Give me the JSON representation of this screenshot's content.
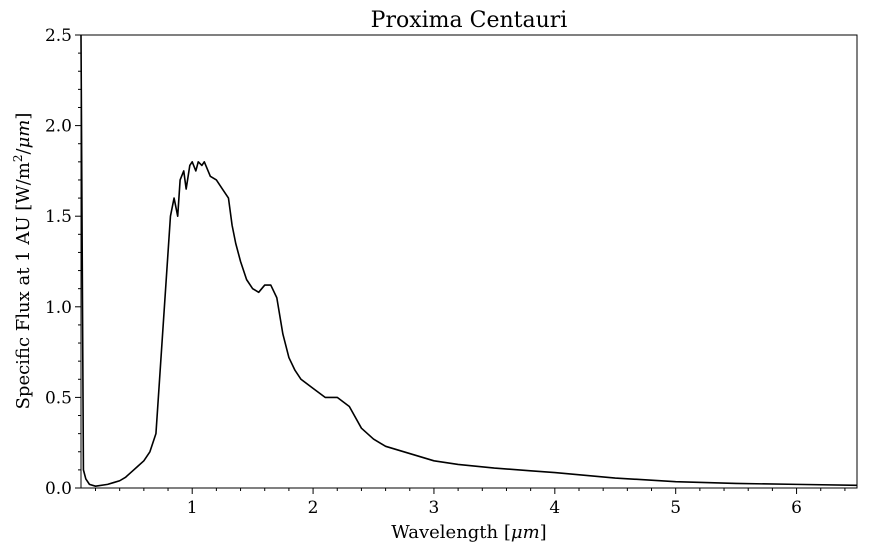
{
  "chart_data": {
    "type": "line",
    "title": "Proxima Centauri",
    "xlabel_text": "Wavelength [",
    "xlabel_unit": "μm",
    "xlabel_close": "]",
    "ylabel_text": "Specific Flux at 1 AU [W/m",
    "ylabel_sup": "2",
    "ylabel_mid": "/",
    "ylabel_unit": "μm",
    "ylabel_close": "]",
    "xlim": [
      0.08,
      6.5
    ],
    "ylim": [
      0.0,
      2.5
    ],
    "xticks": [
      1,
      2,
      3,
      4,
      5,
      6
    ],
    "xtick_labels": [
      "1",
      "2",
      "3",
      "4",
      "5",
      "6"
    ],
    "yticks": [
      0.0,
      0.5,
      1.0,
      1.5,
      2.0,
      2.5
    ],
    "ytick_labels": [
      "0.0",
      "0.5",
      "1.0",
      "1.5",
      "2.0",
      "2.5"
    ],
    "grid": false,
    "series": [
      {
        "color": "#000000",
        "x": [
          0.08,
          0.1,
          0.12,
          0.15,
          0.2,
          0.3,
          0.35,
          0.4,
          0.45,
          0.5,
          0.55,
          0.6,
          0.65,
          0.7,
          0.73,
          0.76,
          0.78,
          0.8,
          0.82,
          0.85,
          0.88,
          0.9,
          0.93,
          0.95,
          0.98,
          1.0,
          1.03,
          1.05,
          1.08,
          1.1,
          1.15,
          1.2,
          1.25,
          1.3,
          1.33,
          1.36,
          1.4,
          1.45,
          1.5,
          1.55,
          1.6,
          1.65,
          1.7,
          1.75,
          1.8,
          1.85,
          1.9,
          2.0,
          2.1,
          2.2,
          2.3,
          2.4,
          2.5,
          2.6,
          2.8,
          3.0,
          3.2,
          3.5,
          3.8,
          4.0,
          4.5,
          5.0,
          5.5,
          6.0,
          6.5
        ],
        "y": [
          2.5,
          0.1,
          0.05,
          0.02,
          0.01,
          0.02,
          0.03,
          0.04,
          0.06,
          0.09,
          0.12,
          0.15,
          0.2,
          0.3,
          0.6,
          0.9,
          1.1,
          1.3,
          1.5,
          1.6,
          1.5,
          1.7,
          1.75,
          1.65,
          1.78,
          1.8,
          1.75,
          1.8,
          1.78,
          1.8,
          1.72,
          1.7,
          1.65,
          1.6,
          1.45,
          1.35,
          1.25,
          1.15,
          1.1,
          1.08,
          1.12,
          1.12,
          1.05,
          0.85,
          0.72,
          0.65,
          0.6,
          0.55,
          0.5,
          0.5,
          0.45,
          0.33,
          0.27,
          0.23,
          0.19,
          0.15,
          0.13,
          0.11,
          0.095,
          0.085,
          0.055,
          0.035,
          0.025,
          0.02,
          0.015
        ]
      }
    ]
  }
}
